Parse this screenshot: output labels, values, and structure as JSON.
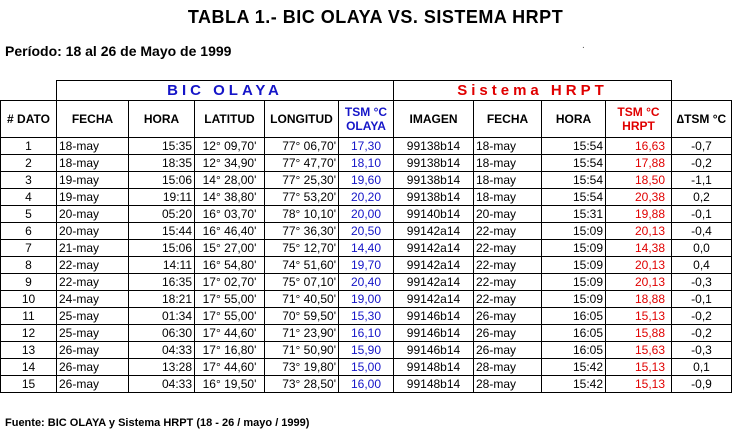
{
  "title": "TABLA 1.-  BIC  OLAYA  VS.  SISTEMA  HRPT",
  "period": "Período:  18 al  26 de Mayo de 1999",
  "groups": {
    "bic": "BIC OLAYA",
    "hrpt": "Sistema HRPT"
  },
  "headers": {
    "dato": "# DATO",
    "fecha": "FECHA",
    "hora": "HORA",
    "latitud": "LATITUD",
    "longitud": "LONGITUD",
    "tsm_olaya": "TSM °C OLAYA",
    "imagen": "IMAGEN",
    "fecha2": "FECHA",
    "hora2": "HORA",
    "tsm_hrpt": "TSM °C HRPT",
    "delta": "∆TSM °C"
  },
  "rows": [
    [
      "1",
      "18-may",
      "15:35",
      "12° 09,70'",
      "77° 06,70'",
      "17,30",
      "99138b14",
      "18-may",
      "15:54",
      "16,63",
      "-0,7"
    ],
    [
      "2",
      "18-may",
      "18:35",
      "12° 34,90'",
      "77° 47,70'",
      "18,10",
      "99138b14",
      "18-may",
      "15:54",
      "17,88",
      "-0,2"
    ],
    [
      "3",
      "19-may",
      "15:06",
      "14° 28,00'",
      "77° 25,30'",
      "19,60",
      "99138b14",
      "18-may",
      "15:54",
      "18,50",
      "-1,1"
    ],
    [
      "4",
      "19-may",
      "19:11",
      "14° 38,80'",
      "77° 53,20'",
      "20,20",
      "99138b14",
      "18-may",
      "15:54",
      "20,38",
      "0,2"
    ],
    [
      "5",
      "20-may",
      "05:20",
      "16° 03,70'",
      "78° 10,10'",
      "20,00",
      "99140b14",
      "20-may",
      "15:31",
      "19,88",
      "-0,1"
    ],
    [
      "6",
      "20-may",
      "15:44",
      "16° 46,40'",
      "77° 36,30'",
      "20,50",
      "99142a14",
      "22-may",
      "15:09",
      "20,13",
      "-0,4"
    ],
    [
      "7",
      "21-may",
      "15:06",
      "15° 27,00'",
      "75° 12,70'",
      "14,40",
      "99142a14",
      "22-may",
      "15:09",
      "14,38",
      "0,0"
    ],
    [
      "8",
      "22-may",
      "14:11",
      "16° 54,80'",
      "74° 51,60'",
      "19,70",
      "99142a14",
      "22-may",
      "15:09",
      "20,13",
      "0,4"
    ],
    [
      "9",
      "22-may",
      "16:35",
      "17° 02,70'",
      "75° 07,10'",
      "20,40",
      "99142a14",
      "22-may",
      "15:09",
      "20,13",
      "-0,3"
    ],
    [
      "10",
      "24-may",
      "18:21",
      "17° 55,00'",
      "71° 40,50'",
      "19,00",
      "99142a14",
      "22-may",
      "15:09",
      "18,88",
      "-0,1"
    ],
    [
      "11",
      "25-may",
      "01:34",
      "17° 55,00'",
      "70° 59,50'",
      "15,30",
      "99146b14",
      "26-may",
      "16:05",
      "15,13",
      "-0,2"
    ],
    [
      "12",
      "25-may",
      "06:30",
      "17° 44,60'",
      "71° 23,90'",
      "16,10",
      "99146b14",
      "26-may",
      "16:05",
      "15,88",
      "-0,2"
    ],
    [
      "13",
      "26-may",
      "04:33",
      "17° 16,80'",
      "71° 50,90'",
      "15,90",
      "99146b14",
      "26-may",
      "16:05",
      "15,63",
      "-0,3"
    ],
    [
      "14",
      "26-may",
      "13:28",
      "17° 44,60'",
      "73° 19,80'",
      "15,00",
      "99148b14",
      "28-may",
      "15:42",
      "15,13",
      "0,1"
    ],
    [
      "15",
      "26-may",
      "04:33",
      "16° 19,50'",
      "73° 28,50'",
      "16,00",
      "99148b14",
      "28-may",
      "15:42",
      "15,13",
      "-0,9"
    ]
  ],
  "source": "Fuente:  BIC OLAYA y Sistema HRPT  (18 - 26 / mayo / 1999)",
  "colors": {
    "blue": "#1515c8",
    "red": "#e00000"
  }
}
